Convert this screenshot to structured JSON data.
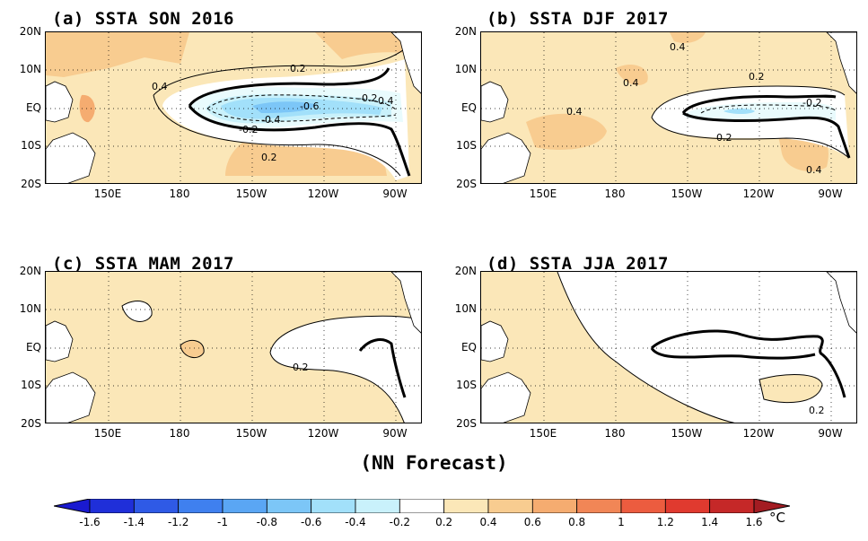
{
  "panels": [
    {
      "id": "a",
      "title": "(a) SSTA  SON 2016"
    },
    {
      "id": "b",
      "title": "(b) SSTA  DJF 2017"
    },
    {
      "id": "c",
      "title": "(c) SSTA  MAM 2017"
    },
    {
      "id": "d",
      "title": "(d) SSTA  JJA 2017"
    }
  ],
  "lat_labels": [
    "20N",
    "10N",
    "EQ",
    "10S",
    "20S"
  ],
  "lon_labels": [
    "150E",
    "180",
    "150W",
    "120W",
    "90W"
  ],
  "footer": "(NN Forecast)",
  "colorbar": {
    "unit": "°C",
    "ticks": [
      "-1.6",
      "-1.4",
      "-1.2",
      "-1",
      "-0.8",
      "-0.6",
      "-0.4",
      "-0.2",
      "0.2",
      "0.4",
      "0.6",
      "0.8",
      "1",
      "1.2",
      "1.4",
      "1.6"
    ],
    "colors": [
      "#1f2fd9",
      "#2f5ae6",
      "#3f80ef",
      "#5aa6f4",
      "#7cc6f7",
      "#a2e0fa",
      "#c9f1fb",
      "#ffffff",
      "#fbe7b8",
      "#f8cc90",
      "#f5ac70",
      "#f18656",
      "#ec5c3f",
      "#e03a2f",
      "#c52828"
    ],
    "under_color": "#1a1ad0",
    "over_color": "#a31c22"
  },
  "contour_labels": {
    "a": [
      "0.2",
      "0.4",
      "-0.2",
      "-0.6",
      "-0.4",
      "-0.2",
      "0.4",
      "0.2"
    ],
    "b": [
      "0.4",
      "0.4",
      "0.2",
      "0.4",
      "-0.2",
      "0.2",
      "0.4"
    ],
    "c": [
      "0.2"
    ],
    "d": [
      "0.2"
    ]
  }
}
